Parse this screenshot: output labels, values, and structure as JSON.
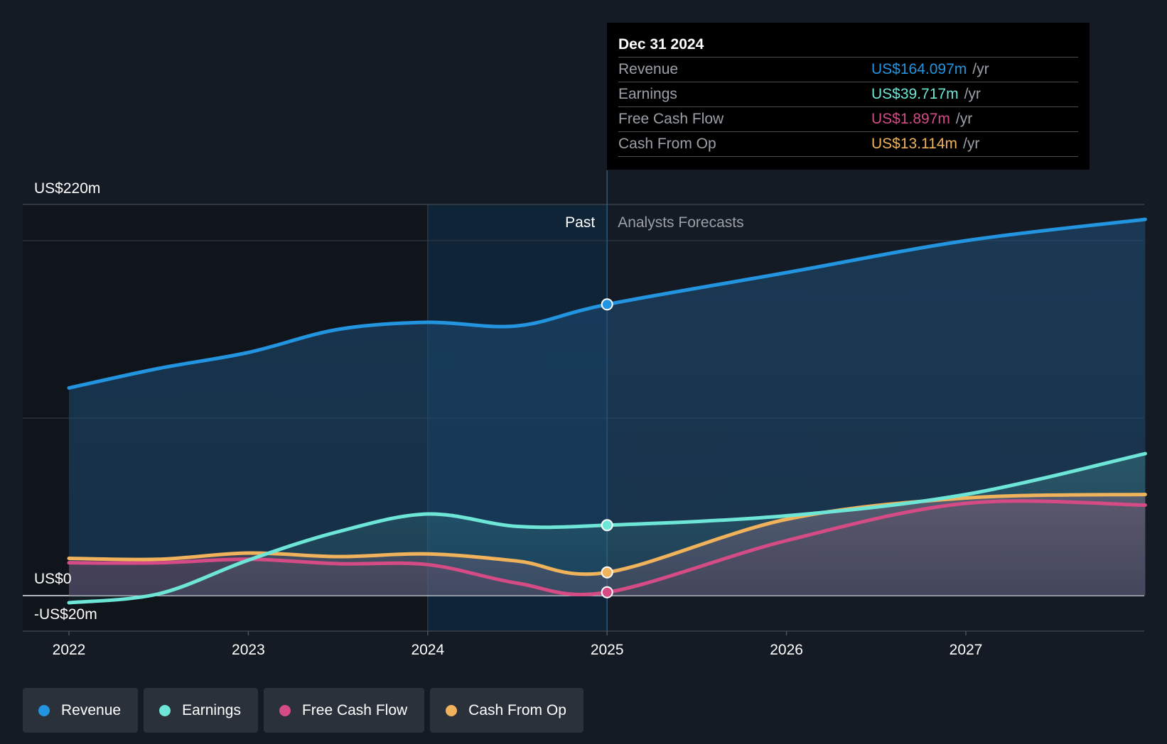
{
  "tooltip": {
    "date": "Dec 31 2024",
    "rows": [
      {
        "label": "Revenue",
        "value": "US$164.097m",
        "unit": "/yr",
        "color": "#2394df"
      },
      {
        "label": "Earnings",
        "value": "US$39.717m",
        "unit": "/yr",
        "color": "#6ee6d7"
      },
      {
        "label": "Free Cash Flow",
        "value": "US$1.897m",
        "unit": "/yr",
        "color": "#d44b85"
      },
      {
        "label": "Cash From Op",
        "value": "US$13.114m",
        "unit": "/yr",
        "color": "#f0b25a"
      }
    ]
  },
  "legend": [
    {
      "label": "Revenue",
      "color": "#2394df"
    },
    {
      "label": "Earnings",
      "color": "#6ee6d7"
    },
    {
      "label": "Free Cash Flow",
      "color": "#d44b85"
    },
    {
      "label": "Cash From Op",
      "color": "#f0b25a"
    }
  ],
  "chart_data": {
    "type": "line",
    "y_axis_labels": {
      "top": "US$220m",
      "zero": "US$0",
      "bottom": "-US$20m"
    },
    "ylim": [
      -20,
      220
    ],
    "xlim": [
      2022,
      2028
    ],
    "x_ticks": [
      2022,
      2023,
      2024,
      2025,
      2026,
      2027
    ],
    "x_tick_labels": [
      "2022",
      "2023",
      "2024",
      "2025",
      "2026",
      "2027"
    ],
    "gridlines": [
      0,
      100,
      200
    ],
    "past_label": "Past",
    "forecast_label": "Analysts Forecasts",
    "divider_x": 2025,
    "highlight_x_start": 2024,
    "series": [
      {
        "name": "Revenue",
        "color": "#2394df",
        "points": [
          [
            2022,
            117
          ],
          [
            2022.5,
            128
          ],
          [
            2023,
            137
          ],
          [
            2023.5,
            150
          ],
          [
            2024,
            154
          ],
          [
            2024.5,
            152
          ],
          [
            2025,
            164.1
          ],
          [
            2026,
            182
          ],
          [
            2027,
            200
          ],
          [
            2028,
            212
          ]
        ]
      },
      {
        "name": "Earnings",
        "color": "#6ee6d7",
        "points": [
          [
            2022,
            -4
          ],
          [
            2022.5,
            1
          ],
          [
            2023,
            20
          ],
          [
            2023.5,
            36
          ],
          [
            2024,
            46
          ],
          [
            2024.5,
            39
          ],
          [
            2025,
            39.7
          ],
          [
            2026,
            45
          ],
          [
            2027,
            57
          ],
          [
            2028,
            80
          ]
        ]
      },
      {
        "name": "Free Cash Flow",
        "color": "#d44b85",
        "points": [
          [
            2022,
            18.5
          ],
          [
            2022.5,
            18.5
          ],
          [
            2023,
            20.5
          ],
          [
            2023.5,
            18
          ],
          [
            2024,
            17.5
          ],
          [
            2024.5,
            7
          ],
          [
            2025,
            1.9
          ],
          [
            2026,
            31
          ],
          [
            2027,
            52
          ],
          [
            2028,
            51
          ]
        ]
      },
      {
        "name": "Cash From Op",
        "color": "#f0b25a",
        "points": [
          [
            2022,
            21
          ],
          [
            2022.5,
            20.5
          ],
          [
            2023,
            24
          ],
          [
            2023.5,
            22
          ],
          [
            2024,
            23.5
          ],
          [
            2024.5,
            19.5
          ],
          [
            2025,
            13.1
          ],
          [
            2026,
            43
          ],
          [
            2027,
            55
          ],
          [
            2028,
            57
          ]
        ]
      }
    ]
  }
}
